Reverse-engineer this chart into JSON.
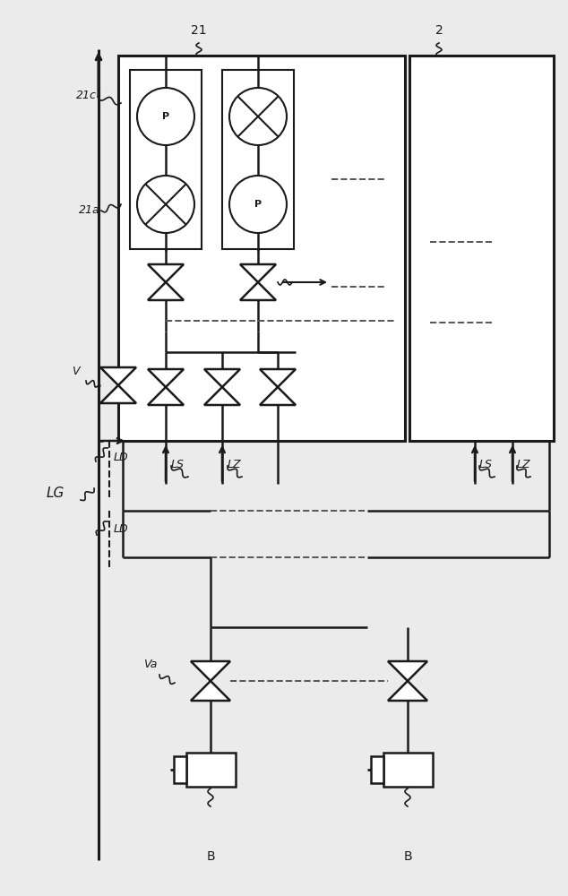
{
  "bg_color": "#ebebeb",
  "line_color": "#1a1a1a",
  "dashed_color": "#555555",
  "white": "#ffffff",
  "figw": 6.34,
  "figh": 10.0,
  "labels": {
    "LG": "LG",
    "21": "21",
    "21a": "21a",
    "21c": "21c",
    "2": "2",
    "V": "V",
    "Va": "Va",
    "LD1": "LD",
    "LD2": "LD",
    "LS1": "LS",
    "LZ1": "LZ",
    "LS2": "LS",
    "LZ2": "LZ",
    "B1": "B",
    "B2": "B"
  }
}
